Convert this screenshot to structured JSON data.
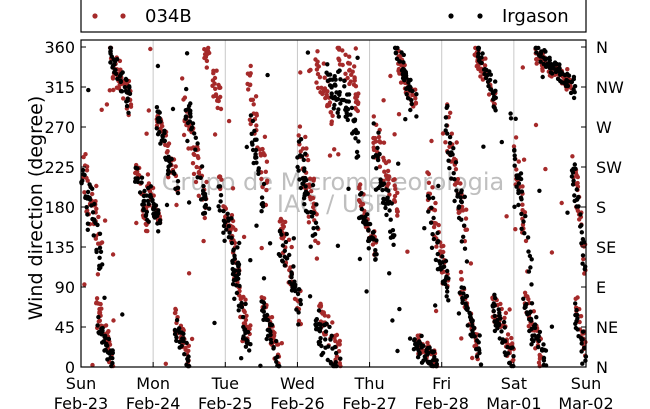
{
  "chart_data": {
    "type": "scatter",
    "title": "",
    "xlabel": "",
    "ylabel": "Wind direction (degree)",
    "ylim": [
      0,
      360
    ],
    "xlim": [
      0,
      7
    ],
    "yticks": [
      0,
      45,
      90,
      135,
      180,
      225,
      270,
      315,
      360
    ],
    "yticks_right": [
      "N",
      "NE",
      "E",
      "SE",
      "S",
      "SW",
      "W",
      "NW",
      "N"
    ],
    "xticks": [
      {
        "x": 0,
        "day": "Sun",
        "date": "Feb-23"
      },
      {
        "x": 1,
        "day": "Mon",
        "date": "Feb-24"
      },
      {
        "x": 2,
        "day": "Tue",
        "date": "Feb-25"
      },
      {
        "x": 3,
        "day": "Wed",
        "date": "Feb-26"
      },
      {
        "x": 4,
        "day": "Thu",
        "date": "Feb-27"
      },
      {
        "x": 5,
        "day": "Fri",
        "date": "Feb-28"
      },
      {
        "x": 6,
        "day": "Sat",
        "date": "Mar-01"
      },
      {
        "x": 7,
        "day": "Sun",
        "date": "Mar-02"
      }
    ],
    "grid": "vertical",
    "legend_position": "top",
    "watermark": [
      "Grupo de Micrometeorologia",
      "IAG / USP"
    ],
    "series": [
      {
        "name": "034B",
        "color": "#a52a2a",
        "segments": [
          {
            "x": [
              0.0,
              0.3
            ],
            "y": [
              220,
              140
            ],
            "spread": 40
          },
          {
            "x": [
              0.2,
              0.45
            ],
            "y": [
              70,
              10
            ],
            "spread": 20
          },
          {
            "x": [
              0.4,
              0.55
            ],
            "y": [
              350,
              320
            ],
            "spread": 18
          },
          {
            "x": [
              0.5,
              0.7
            ],
            "y": [
              340,
              295
            ],
            "spread": 22
          },
          {
            "x": [
              0.75,
              0.95
            ],
            "y": [
              230,
              150
            ],
            "spread": 20
          },
          {
            "x": [
              0.9,
              1.1
            ],
            "y": [
              210,
              160
            ],
            "spread": 15
          },
          {
            "x": [
              1.05,
              1.35
            ],
            "y": [
              290,
              200
            ],
            "spread": 25
          },
          {
            "x": [
              1.3,
              1.5
            ],
            "y": [
              60,
              5
            ],
            "spread": 20
          },
          {
            "x": [
              1.4,
              1.75
            ],
            "y": [
              300,
              180
            ],
            "spread": 35
          },
          {
            "x": [
              1.7,
              1.95
            ],
            "y": [
              360,
              300
            ],
            "spread": 20
          },
          {
            "x": [
              1.9,
              2.15
            ],
            "y": [
              220,
              130
            ],
            "spread": 25
          },
          {
            "x": [
              2.1,
              2.35
            ],
            "y": [
              120,
              30
            ],
            "spread": 25
          },
          {
            "x": [
              2.3,
              2.6
            ],
            "y": [
              330,
              200
            ],
            "spread": 35
          },
          {
            "x": [
              2.5,
              2.75
            ],
            "y": [
              80,
              10
            ],
            "spread": 20
          },
          {
            "x": [
              2.75,
              3.05
            ],
            "y": [
              160,
              60
            ],
            "spread": 30
          },
          {
            "x": [
              3.0,
              3.3
            ],
            "y": [
              260,
              150
            ],
            "spread": 40
          },
          {
            "x": [
              3.25,
              3.5
            ],
            "y": [
              340,
              280
            ],
            "spread": 25
          },
          {
            "x": [
              3.3,
              3.6
            ],
            "y": [
              60,
              10
            ],
            "spread": 25
          },
          {
            "x": [
              3.55,
              3.85
            ],
            "y": [
              360,
              300
            ],
            "spread": 25
          },
          {
            "x": [
              3.85,
              4.1
            ],
            "y": [
              190,
              130
            ],
            "spread": 20
          },
          {
            "x": [
              4.05,
              4.4
            ],
            "y": [
              260,
              180
            ],
            "spread": 30
          },
          {
            "x": [
              4.35,
              4.65
            ],
            "y": [
              355,
              290
            ],
            "spread": 20
          },
          {
            "x": [
              4.65,
              4.95
            ],
            "y": [
              30,
              3
            ],
            "spread": 15
          },
          {
            "x": [
              4.8,
              5.1
            ],
            "y": [
              200,
              90
            ],
            "spread": 30
          },
          {
            "x": [
              5.05,
              5.35
            ],
            "y": [
              280,
              150
            ],
            "spread": 35
          },
          {
            "x": [
              5.25,
              5.5
            ],
            "y": [
              100,
              20
            ],
            "spread": 25
          },
          {
            "x": [
              5.45,
              5.75
            ],
            "y": [
              355,
              300
            ],
            "spread": 18
          },
          {
            "x": [
              5.7,
              6.0
            ],
            "y": [
              80,
              10
            ],
            "spread": 25
          },
          {
            "x": [
              6.0,
              6.2
            ],
            "y": [
              250,
              120
            ],
            "spread": 30
          },
          {
            "x": [
              6.15,
              6.4
            ],
            "y": [
              80,
              10
            ],
            "spread": 25
          },
          {
            "x": [
              6.3,
              6.8
            ],
            "y": [
              350,
              320
            ],
            "spread": 14
          },
          {
            "x": [
              6.8,
              7.0
            ],
            "y": [
              240,
              120
            ],
            "spread": 30
          },
          {
            "x": [
              6.85,
              7.0
            ],
            "y": [
              70,
              20
            ],
            "spread": 20
          }
        ]
      },
      {
        "name": "Irgason",
        "color": "#000000",
        "segments": [
          {
            "x": [
              0.0,
              0.3
            ],
            "y": [
              215,
              120
            ],
            "spread": 35
          },
          {
            "x": [
              0.2,
              0.45
            ],
            "y": [
              60,
              5
            ],
            "spread": 20
          },
          {
            "x": [
              0.4,
              0.7
            ],
            "y": [
              350,
              300
            ],
            "spread": 20
          },
          {
            "x": [
              0.75,
              0.95
            ],
            "y": [
              220,
              160
            ],
            "spread": 20
          },
          {
            "x": [
              0.9,
              1.1
            ],
            "y": [
              200,
              165
            ],
            "spread": 15
          },
          {
            "x": [
              1.05,
              1.35
            ],
            "y": [
              280,
              200
            ],
            "spread": 25
          },
          {
            "x": [
              1.3,
              1.5
            ],
            "y": [
              50,
              5
            ],
            "spread": 20
          },
          {
            "x": [
              1.45,
              1.75
            ],
            "y": [
              300,
              170
            ],
            "spread": 35
          },
          {
            "x": [
              1.9,
              2.2
            ],
            "y": [
              190,
              110
            ],
            "spread": 25
          },
          {
            "x": [
              2.1,
              2.35
            ],
            "y": [
              110,
              20
            ],
            "spread": 25
          },
          {
            "x": [
              2.35,
              2.55
            ],
            "y": [
              260,
              180
            ],
            "spread": 30
          },
          {
            "x": [
              2.5,
              2.75
            ],
            "y": [
              70,
              5
            ],
            "spread": 20
          },
          {
            "x": [
              2.75,
              3.05
            ],
            "y": [
              150,
              60
            ],
            "spread": 30
          },
          {
            "x": [
              3.0,
              3.3
            ],
            "y": [
              250,
              140
            ],
            "spread": 40
          },
          {
            "x": [
              3.25,
              3.55
            ],
            "y": [
              50,
              5
            ],
            "spread": 25
          },
          {
            "x": [
              3.4,
              3.6
            ],
            "y": [
              340,
              290
            ],
            "spread": 25
          },
          {
            "x": [
              3.55,
              3.85
            ],
            "y": [
              330,
              250
            ],
            "spread": 30
          },
          {
            "x": [
              3.85,
              4.1
            ],
            "y": [
              185,
              130
            ],
            "spread": 20
          },
          {
            "x": [
              4.05,
              4.35
            ],
            "y": [
              240,
              150
            ],
            "spread": 30
          },
          {
            "x": [
              4.35,
              4.65
            ],
            "y": [
              355,
              290
            ],
            "spread": 20
          },
          {
            "x": [
              4.6,
              4.95
            ],
            "y": [
              25,
              3
            ],
            "spread": 15
          },
          {
            "x": [
              4.8,
              5.1
            ],
            "y": [
              190,
              80
            ],
            "spread": 30
          },
          {
            "x": [
              5.05,
              5.35
            ],
            "y": [
              270,
              140
            ],
            "spread": 35
          },
          {
            "x": [
              5.25,
              5.55
            ],
            "y": [
              90,
              10
            ],
            "spread": 25
          },
          {
            "x": [
              5.5,
              5.75
            ],
            "y": [
              355,
              300
            ],
            "spread": 18
          },
          {
            "x": [
              5.7,
              6.0
            ],
            "y": [
              70,
              5
            ],
            "spread": 20
          },
          {
            "x": [
              6.0,
              6.25
            ],
            "y": [
              240,
              110
            ],
            "spread": 30
          },
          {
            "x": [
              6.15,
              6.45
            ],
            "y": [
              70,
              5
            ],
            "spread": 25
          },
          {
            "x": [
              6.3,
              6.85
            ],
            "y": [
              355,
              315
            ],
            "spread": 14
          },
          {
            "x": [
              6.8,
              7.0
            ],
            "y": [
              230,
              110
            ],
            "spread": 30
          },
          {
            "x": [
              6.85,
              7.0
            ],
            "y": [
              60,
              10
            ],
            "spread": 20
          }
        ]
      }
    ]
  }
}
